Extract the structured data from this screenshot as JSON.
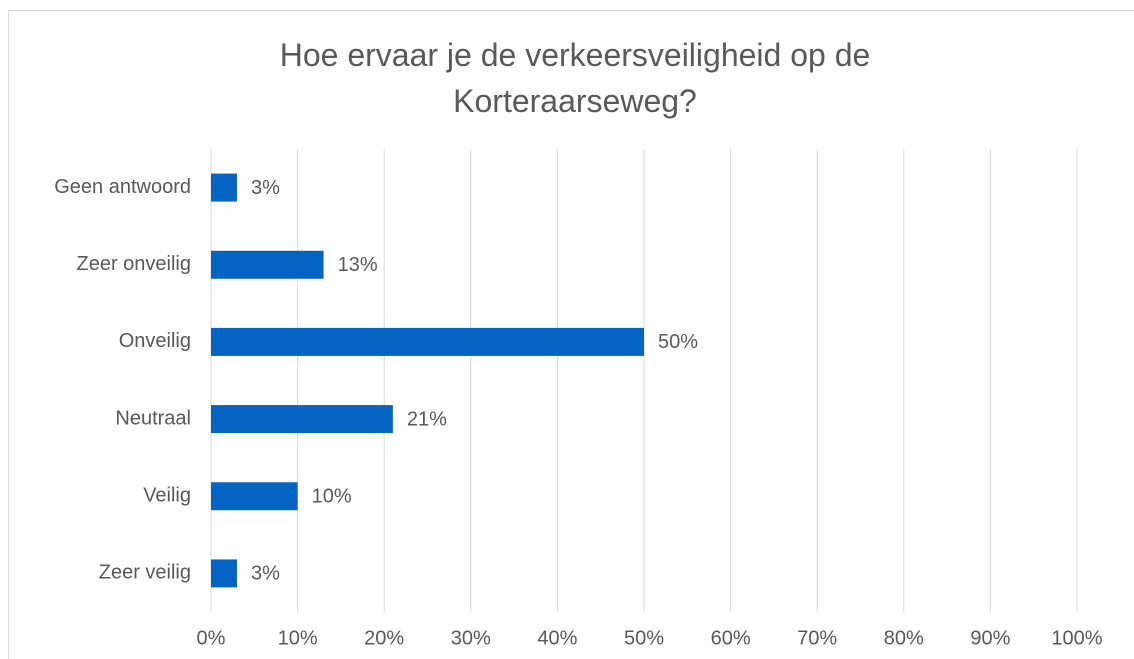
{
  "chart_data": {
    "type": "bar",
    "orientation": "horizontal",
    "title": "Hoe ervaar je de verkeersveiligheid op de Korteraarseweg?",
    "categories": [
      "Geen antwoord",
      "Zeer onveilig",
      "Onveilig",
      "Neutraal",
      "Veilig",
      "Zeer veilig"
    ],
    "values": [
      3,
      13,
      50,
      21,
      10,
      3
    ],
    "value_labels": [
      "3%",
      "13%",
      "50%",
      "21%",
      "10%",
      "3%"
    ],
    "color": "#0563c1",
    "xlim": [
      0,
      100
    ],
    "xticks": [
      {
        "value": 0,
        "label": "0%"
      },
      {
        "value": 10,
        "label": "10%"
      },
      {
        "value": 20,
        "label": "20%"
      },
      {
        "value": 30,
        "label": "30%"
      },
      {
        "value": 40,
        "label": "40%"
      },
      {
        "value": 50,
        "label": "50%"
      },
      {
        "value": 60,
        "label": "60%"
      },
      {
        "value": 70,
        "label": "70%"
      },
      {
        "value": 80,
        "label": "80%"
      },
      {
        "value": 90,
        "label": "90%"
      },
      {
        "value": 100,
        "label": "100%"
      }
    ],
    "grid": true
  }
}
